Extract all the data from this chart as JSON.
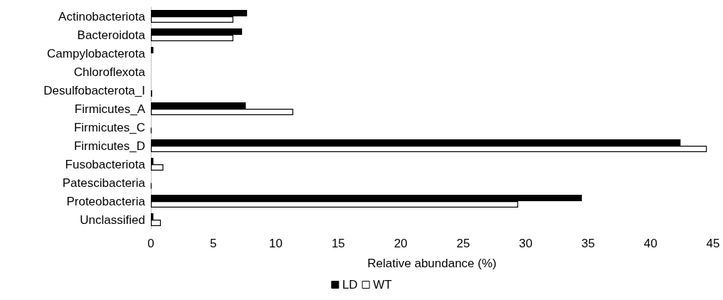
{
  "chart_data": {
    "type": "bar",
    "orientation": "horizontal",
    "xlabel": "Relative abundance (%)",
    "categories": [
      "Actinobacteriota",
      "Bacteroidota",
      "Campylobacterota",
      "Chloroflexota",
      "Desulfobacterota_I",
      "Firmicutes_A",
      "Firmicutes_C",
      "Firmicutes_D",
      "Fusobacteriota",
      "Patescibacteria",
      "Proteobacteria",
      "Unclassified"
    ],
    "series": [
      {
        "name": "LD",
        "color": "#000000",
        "values": [
          7.7,
          7.3,
          0.2,
          0,
          0,
          7.6,
          0,
          42.4,
          0.2,
          0,
          34.5,
          0.2
        ]
      },
      {
        "name": "WT",
        "color": "#ffffff",
        "values": [
          6.6,
          6.6,
          0,
          0,
          0.1,
          11.4,
          0.05,
          44.5,
          1,
          0.05,
          29.4,
          0.8
        ]
      }
    ],
    "xlim": [
      0,
      45
    ],
    "xticks": [
      0,
      5,
      10,
      15,
      20,
      25,
      30,
      35,
      40,
      45
    ],
    "grid": false,
    "legend": "bottom"
  }
}
